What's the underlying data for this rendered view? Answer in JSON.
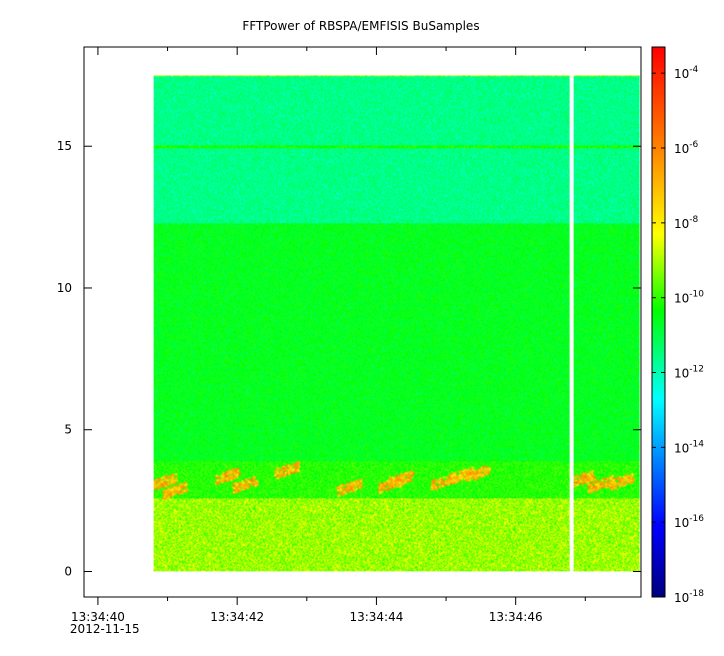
{
  "chart_data": {
    "type": "heatmap",
    "title": "FFTPower of RBSPA/EMFISIS  BuSamples",
    "xlabel": "",
    "ylabel": "",
    "x_ticks": [
      {
        "value": 0,
        "label": "13:34:40",
        "sublabel": "2012-11-15"
      },
      {
        "value": 2,
        "label": "13:34:42"
      },
      {
        "value": 4,
        "label": "13:34:44"
      },
      {
        "value": 6,
        "label": "13:34:46"
      }
    ],
    "x_minor_ticks": [
      1,
      3,
      5,
      7
    ],
    "xlim_seconds_after_13_34_40": [
      -0.2,
      7.8
    ],
    "y_ticks": [
      0,
      5,
      10,
      15
    ],
    "ylim": [
      -0.9,
      18.5
    ],
    "data_extent": {
      "x_start": 0.8,
      "x_end": 7.8,
      "y_start": 0,
      "y_end": 17.5
    },
    "data_gap": {
      "x_start": 6.77,
      "x_end": 6.83
    },
    "colorbar": {
      "scale": "log",
      "range_exponent": [
        -18,
        -3.3
      ],
      "tick_labels": [
        {
          "base": "10",
          "exp": "-4",
          "value": -4
        },
        {
          "base": "10",
          "exp": "-6",
          "value": -6
        },
        {
          "base": "10",
          "exp": "-8",
          "value": -8
        },
        {
          "base": "10",
          "exp": "-10",
          "value": -10
        },
        {
          "base": "10",
          "exp": "-12",
          "value": -12
        },
        {
          "base": "10",
          "exp": "-14",
          "value": -14
        },
        {
          "base": "10",
          "exp": "-16",
          "value": -16
        },
        {
          "base": "10",
          "exp": "-18",
          "value": -18
        }
      ],
      "colormap": [
        "#00007f",
        "#0000ff",
        "#00ffff",
        "#00ff00",
        "#ffff00",
        "#ff7f00",
        "#ff0000"
      ]
    },
    "bands": [
      {
        "y_min": 12.3,
        "y_max": 17.5,
        "log_power": -11.6
      },
      {
        "y_min": 3.9,
        "y_max": 12.3,
        "log_power": -10.6
      },
      {
        "y_min": 2.6,
        "y_max": 3.9,
        "log_power": -10.1
      },
      {
        "y_min": 0.1,
        "y_max": 2.6,
        "log_power": -9.1
      }
    ],
    "line_features": [
      {
        "y": 15.0,
        "log_power": -10.3
      }
    ],
    "bursts_log_power": -7.0
  }
}
